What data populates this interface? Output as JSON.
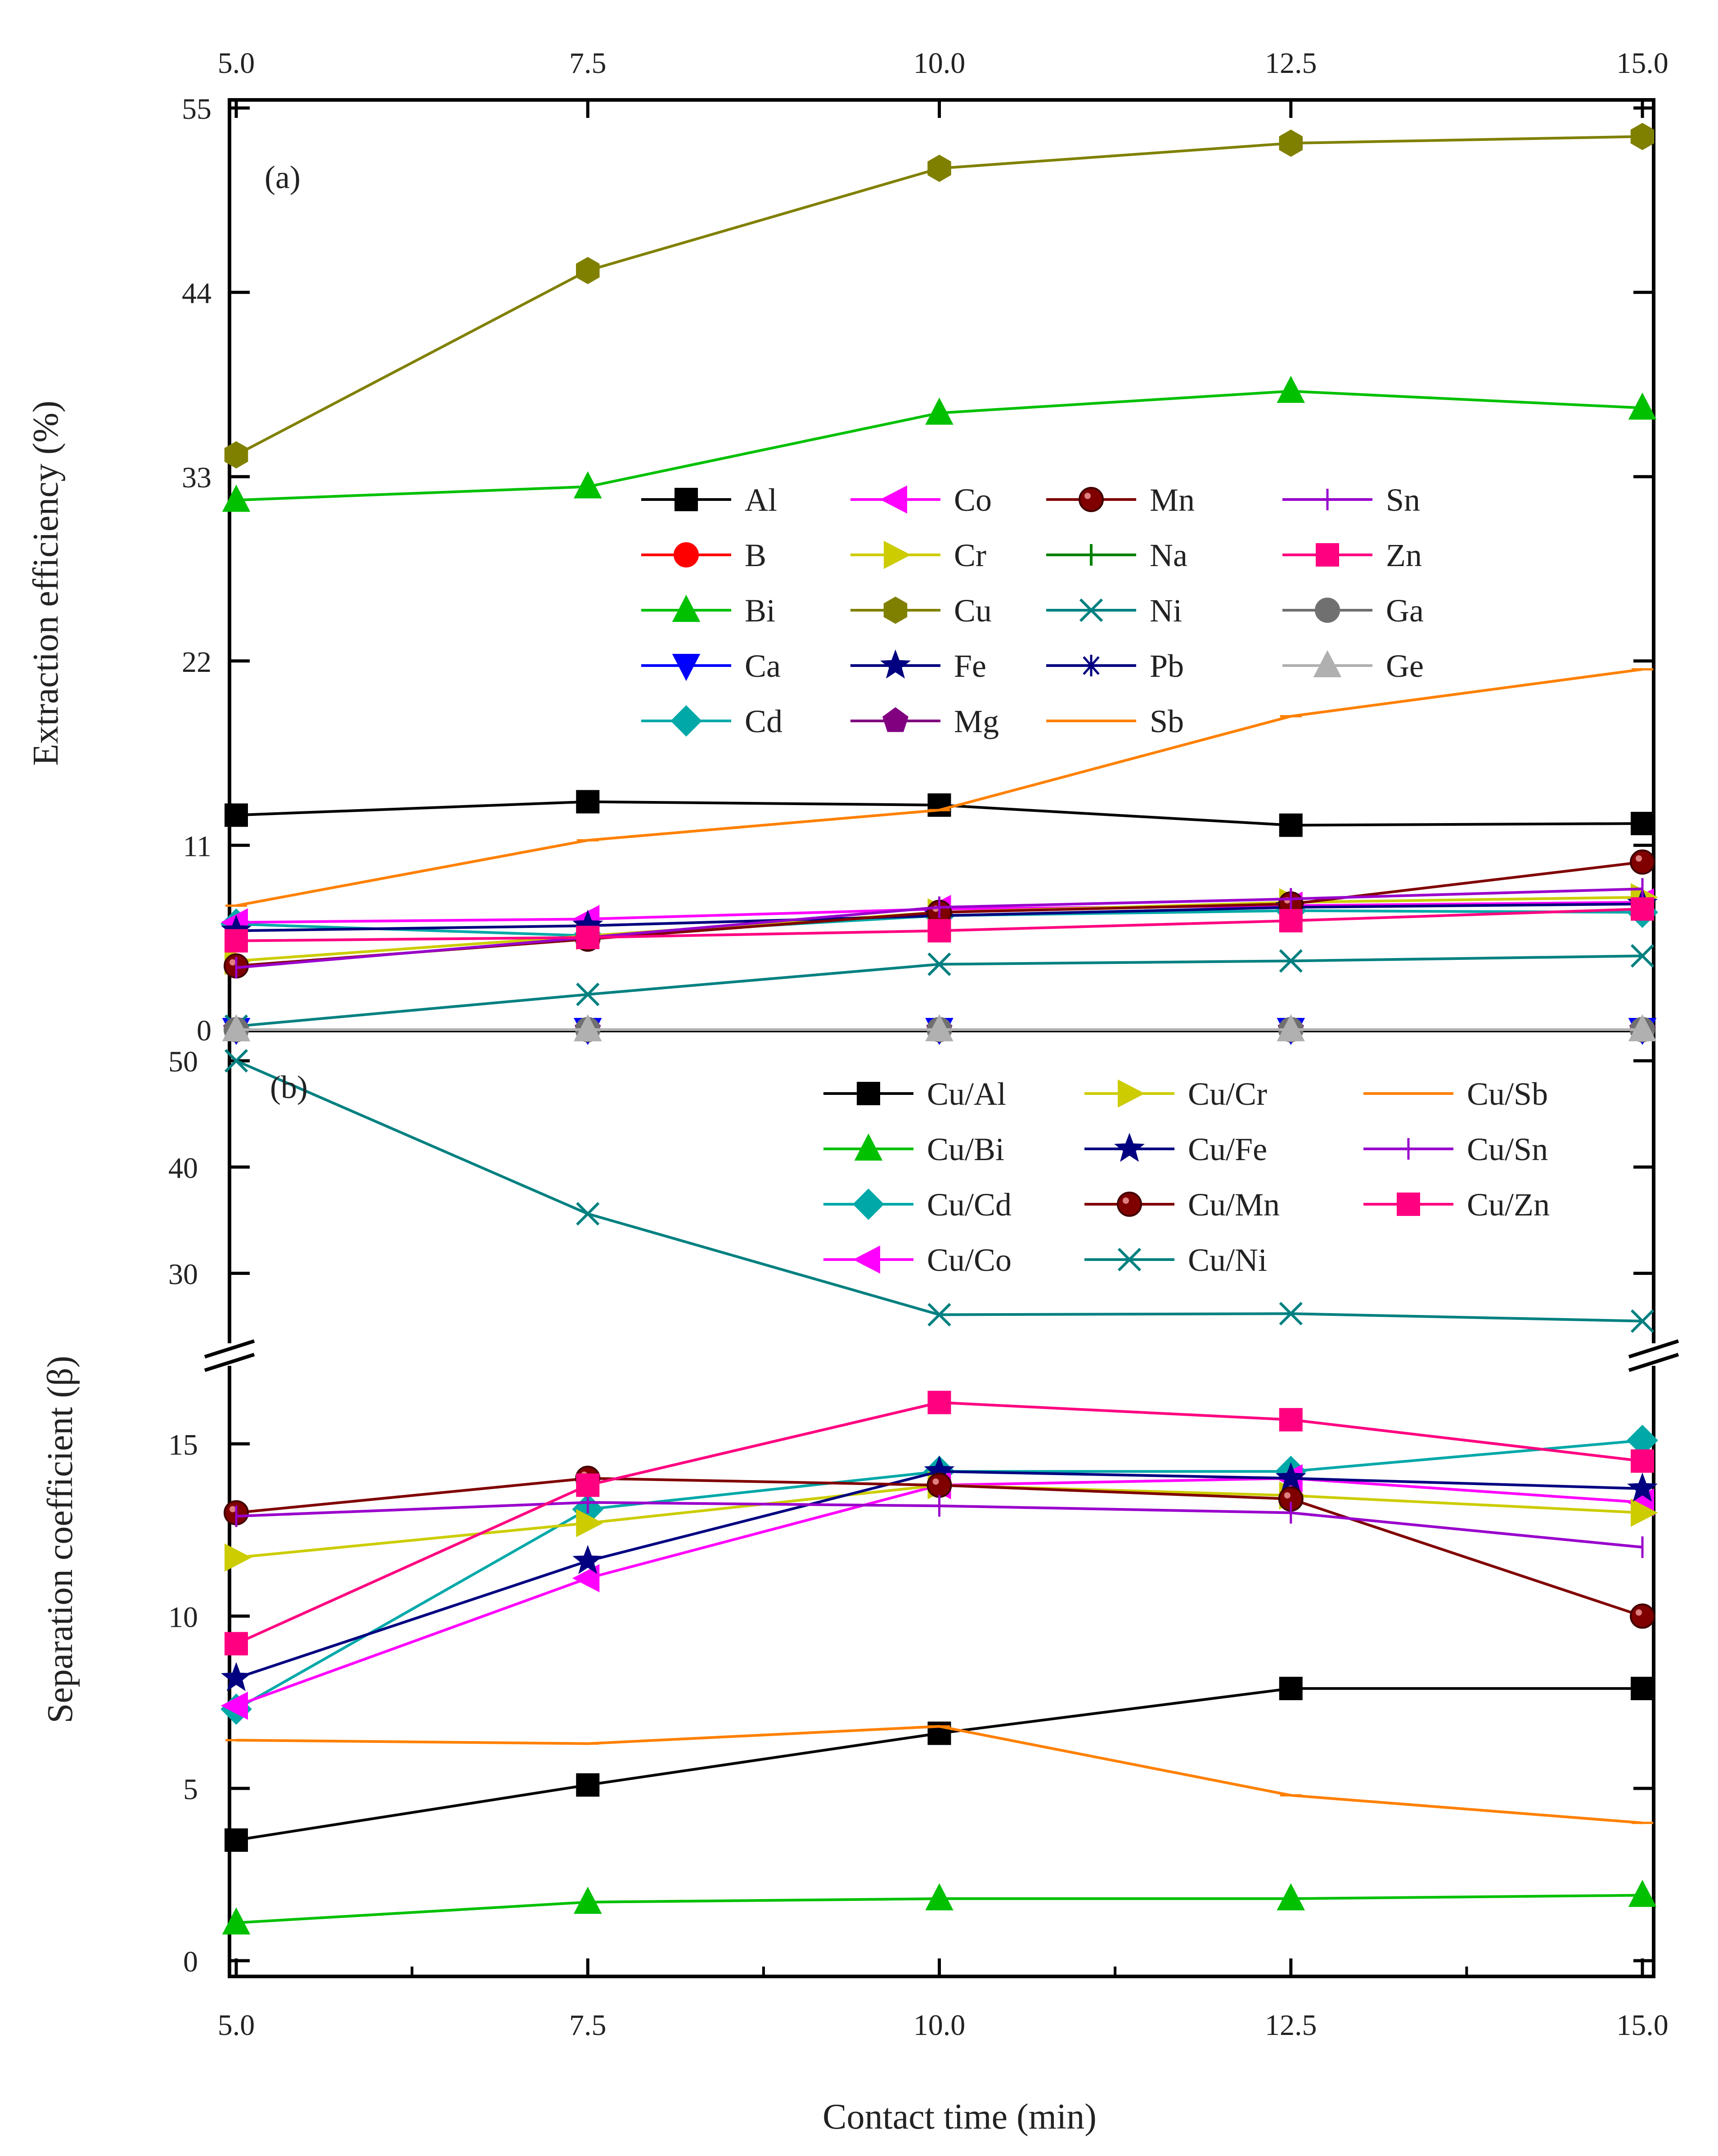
{
  "chart_data": [
    {
      "panel": "a",
      "type": "line",
      "panel_label": "(a)",
      "xlabel": "Contact time (min)",
      "ylabel": "Extraction efficiency (%)",
      "x": [
        5.0,
        7.5,
        10.0,
        12.5,
        15.0
      ],
      "x_tick_labels": [
        "5.0",
        "7.5",
        "10.0",
        "12.5",
        "15.0"
      ],
      "ylim": [
        0,
        55
      ],
      "y_ticks": [
        0,
        11,
        22,
        33,
        44,
        55
      ],
      "legend_position": "center-right",
      "series": [
        {
          "name": "Al",
          "color": "#000000",
          "marker": "square",
          "values": [
            12.8,
            13.6,
            13.4,
            12.2,
            12.3
          ]
        },
        {
          "name": "B",
          "color": "#ff0000",
          "marker": "circle",
          "values": [
            0,
            0,
            0,
            0,
            0
          ]
        },
        {
          "name": "Bi",
          "color": "#00c000",
          "marker": "triangle-up",
          "values": [
            31.6,
            32.4,
            36.8,
            38.1,
            37.1
          ]
        },
        {
          "name": "Ca",
          "color": "#0000ff",
          "marker": "triangle-down",
          "values": [
            0,
            0,
            0,
            0,
            0
          ]
        },
        {
          "name": "Cd",
          "color": "#00a8a8",
          "marker": "diamond",
          "values": [
            6.3,
            5.6,
            6.8,
            7.1,
            7.0
          ]
        },
        {
          "name": "Co",
          "color": "#ff00ff",
          "marker": "triangle-left",
          "values": [
            6.4,
            6.6,
            7.2,
            7.4,
            7.6
          ]
        },
        {
          "name": "Cr",
          "color": "#cccc00",
          "marker": "triangle-right",
          "values": [
            4.1,
            5.6,
            7.0,
            7.6,
            7.9
          ]
        },
        {
          "name": "Cu",
          "color": "#808000",
          "marker": "hexagon",
          "values": [
            34.3,
            45.3,
            51.4,
            52.9,
            53.3
          ]
        },
        {
          "name": "Fe",
          "color": "#000080",
          "marker": "star",
          "values": [
            5.9,
            6.2,
            6.8,
            7.3,
            7.5
          ]
        },
        {
          "name": "Mg",
          "color": "#800080",
          "marker": "pentagon",
          "values": [
            0,
            0,
            0,
            0,
            0
          ]
        },
        {
          "name": "Mn",
          "color": "#800000",
          "marker": "circle-dark",
          "values": [
            3.8,
            5.4,
            7.0,
            7.5,
            10.0
          ]
        },
        {
          "name": "Na",
          "color": "#008000",
          "marker": "plus",
          "values": [
            0,
            0,
            0,
            0,
            0
          ]
        },
        {
          "name": "Ni",
          "color": "#008080",
          "marker": "x",
          "values": [
            0.2,
            2.1,
            3.9,
            4.1,
            4.4
          ]
        },
        {
          "name": "Pb",
          "color": "#000080",
          "marker": "asterisk",
          "values": [
            0,
            0,
            0,
            0,
            0
          ]
        },
        {
          "name": "Sb",
          "color": "#ff8000",
          "marker": "dash",
          "values": [
            7.4,
            11.3,
            13.1,
            18.7,
            21.5
          ]
        },
        {
          "name": "Sn",
          "color": "#9900cc",
          "marker": "vbar",
          "values": [
            3.7,
            5.5,
            7.3,
            7.8,
            8.4
          ]
        },
        {
          "name": "Zn",
          "color": "#ff0080",
          "marker": "square",
          "values": [
            5.3,
            5.5,
            5.9,
            6.5,
            7.2
          ]
        },
        {
          "name": "Ga",
          "color": "#707070",
          "marker": "circle",
          "values": [
            0,
            0,
            0,
            0,
            0
          ]
        },
        {
          "name": "Ge",
          "color": "#b0b0b0",
          "marker": "triangle-up",
          "values": [
            0,
            0,
            0,
            0,
            0
          ]
        }
      ]
    },
    {
      "panel": "b",
      "type": "line",
      "panel_label": "(b)",
      "xlabel": "Contact time (min)",
      "ylabel": "Separation coefficient (β)",
      "x": [
        5.0,
        7.5,
        10.0,
        12.5,
        15.0
      ],
      "x_tick_labels": [
        "5.0",
        "7.5",
        "10.0",
        "12.5",
        "15.0"
      ],
      "axis_break": true,
      "ylim_lower": [
        0,
        17.2
      ],
      "ylim_upper": [
        23.2,
        52
      ],
      "y_ticks_lower": [
        0,
        5,
        10,
        15
      ],
      "y_ticks_upper": [
        30,
        40,
        50
      ],
      "legend_position": "top-right",
      "series": [
        {
          "name": "Cu/Al",
          "color": "#000000",
          "marker": "square",
          "values": [
            3.5,
            5.1,
            6.6,
            7.9,
            7.9
          ]
        },
        {
          "name": "Cu/Bi",
          "color": "#00c000",
          "marker": "triangle-up",
          "values": [
            1.1,
            1.7,
            1.8,
            1.8,
            1.9
          ]
        },
        {
          "name": "Cu/Cd",
          "color": "#00a8a8",
          "marker": "diamond",
          "values": [
            7.3,
            13.1,
            14.2,
            14.2,
            15.1
          ]
        },
        {
          "name": "Cu/Co",
          "color": "#ff00ff",
          "marker": "triangle-left",
          "values": [
            7.4,
            11.1,
            13.8,
            14.0,
            13.3
          ]
        },
        {
          "name": "Cu/Cr",
          "color": "#cccc00",
          "marker": "triangle-right",
          "values": [
            11.7,
            12.7,
            13.8,
            13.5,
            13.0
          ]
        },
        {
          "name": "Cu/Fe",
          "color": "#000080",
          "marker": "star",
          "values": [
            8.2,
            11.6,
            14.2,
            14.0,
            13.7
          ]
        },
        {
          "name": "Cu/Mn",
          "color": "#800000",
          "marker": "circle-dark",
          "values": [
            13.0,
            14.0,
            13.8,
            13.4,
            10.0
          ]
        },
        {
          "name": "Cu/Ni",
          "color": "#008080",
          "marker": "x",
          "values": [
            50.0,
            35.6,
            26.1,
            26.2,
            25.5
          ]
        },
        {
          "name": "Cu/Sb",
          "color": "#ff8000",
          "marker": "dash",
          "values": [
            6.4,
            6.3,
            6.8,
            4.8,
            4.0
          ]
        },
        {
          "name": "Cu/Sn",
          "color": "#9900cc",
          "marker": "vbar",
          "values": [
            12.9,
            13.3,
            13.2,
            13.0,
            12.0
          ]
        },
        {
          "name": "Cu/Zn",
          "color": "#ff0080",
          "marker": "square",
          "values": [
            9.2,
            13.8,
            16.2,
            15.7,
            14.5
          ]
        }
      ]
    }
  ]
}
